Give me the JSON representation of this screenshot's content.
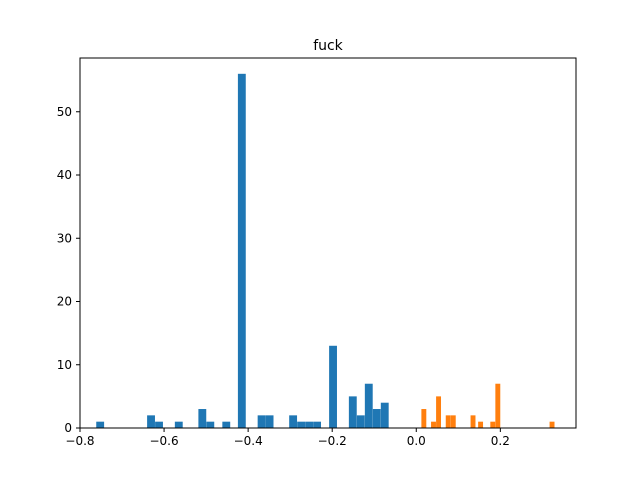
{
  "chart_data": {
    "type": "bar",
    "title": "fuck",
    "xlabel": "",
    "ylabel": "",
    "xlim": [
      -0.8,
      0.38
    ],
    "ylim": [
      0,
      58.5
    ],
    "x_ticks": [
      "−0.8",
      "−0.6",
      "−0.4",
      "−0.2",
      "0.0",
      "0.2"
    ],
    "y_ticks": [
      "0",
      "10",
      "20",
      "30",
      "40",
      "50"
    ],
    "x_tick_values": [
      -0.8,
      -0.6,
      -0.4,
      -0.2,
      0.0,
      0.2
    ],
    "y_tick_values": [
      0,
      10,
      20,
      30,
      40,
      50
    ],
    "grid": false,
    "legend": "none",
    "series": [
      {
        "color": "#1f77b4",
        "bin_width": 0.0187,
        "bins": [
          {
            "x": -0.752,
            "count": 1
          },
          {
            "x": -0.631,
            "count": 2
          },
          {
            "x": -0.612,
            "count": 1
          },
          {
            "x": -0.565,
            "count": 1
          },
          {
            "x": -0.509,
            "count": 3
          },
          {
            "x": -0.49,
            "count": 1
          },
          {
            "x": -0.452,
            "count": 1
          },
          {
            "x": -0.415,
            "count": 56
          },
          {
            "x": -0.368,
            "count": 2
          },
          {
            "x": -0.349,
            "count": 2
          },
          {
            "x": -0.293,
            "count": 2
          },
          {
            "x": -0.274,
            "count": 1
          },
          {
            "x": -0.255,
            "count": 1
          },
          {
            "x": -0.236,
            "count": 1
          },
          {
            "x": -0.198,
            "count": 13
          },
          {
            "x": -0.151,
            "count": 5
          },
          {
            "x": -0.132,
            "count": 2
          },
          {
            "x": -0.113,
            "count": 7
          },
          {
            "x": -0.094,
            "count": 3
          },
          {
            "x": -0.075,
            "count": 4
          }
        ]
      },
      {
        "color": "#ff7f0e",
        "bin_width": 0.0117,
        "bins": [
          {
            "x": 0.018,
            "count": 3
          },
          {
            "x": 0.041,
            "count": 1
          },
          {
            "x": 0.053,
            "count": 5
          },
          {
            "x": 0.076,
            "count": 2
          },
          {
            "x": 0.088,
            "count": 2
          },
          {
            "x": 0.135,
            "count": 2
          },
          {
            "x": 0.153,
            "count": 1
          },
          {
            "x": 0.182,
            "count": 1
          },
          {
            "x": 0.194,
            "count": 7
          },
          {
            "x": 0.323,
            "count": 1
          }
        ]
      }
    ]
  }
}
